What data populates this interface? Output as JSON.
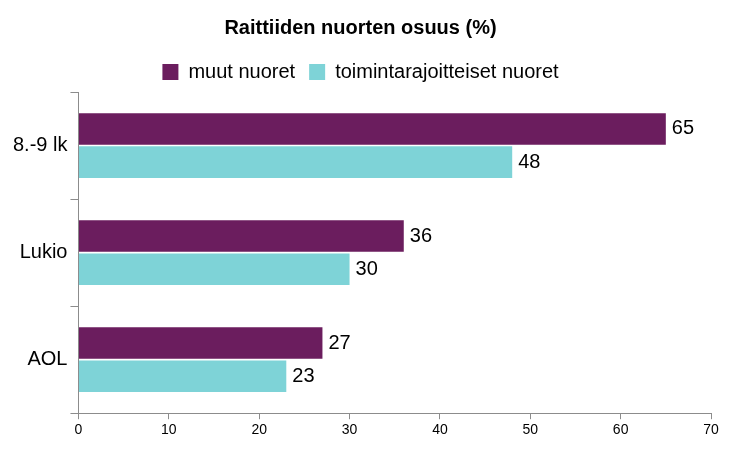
{
  "chart_data": {
    "type": "bar",
    "orientation": "horizontal",
    "title": "Raittiiden nuorten osuus (%)",
    "categories": [
      "8.-9 lk",
      "Lukio",
      "AOL"
    ],
    "series": [
      {
        "name": "muut nuoret",
        "color": "#6b1d5e",
        "values": [
          65,
          36,
          27
        ]
      },
      {
        "name": "toimintarajoitteiset nuoret",
        "color": "#7ed3d7",
        "values": [
          48,
          30,
          23
        ]
      }
    ],
    "xlim": [
      0,
      70
    ],
    "xticks": [
      0,
      10,
      20,
      30,
      40,
      50,
      60,
      70
    ],
    "grid": false,
    "legend": "top",
    "data_labels": true
  }
}
